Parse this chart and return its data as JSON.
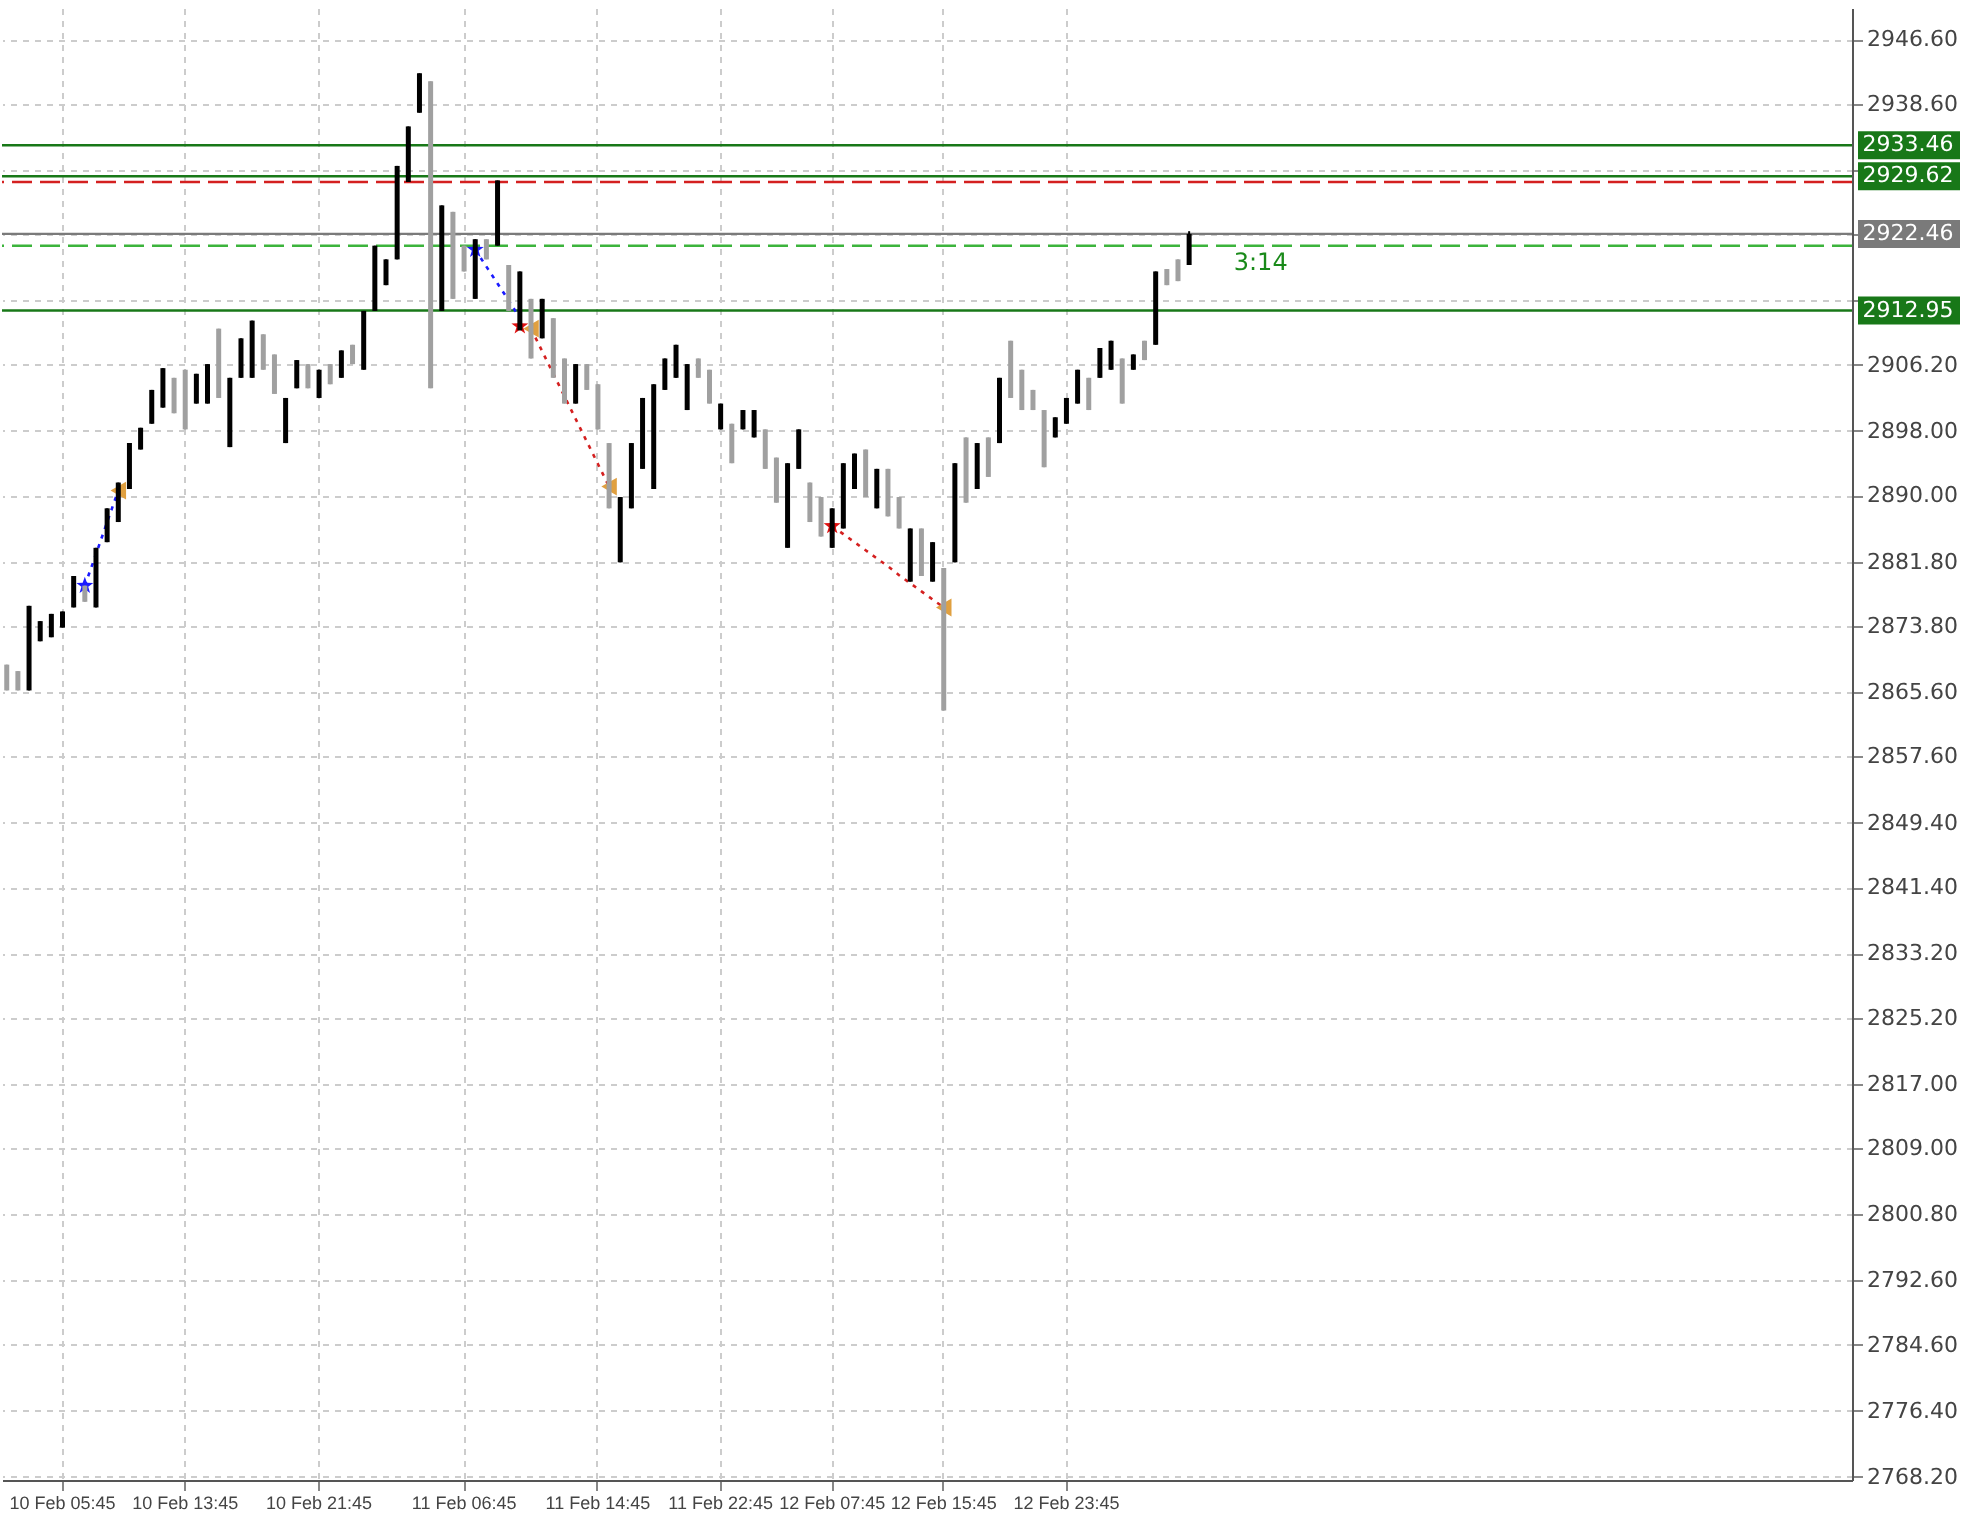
{
  "chart_data": {
    "type": "candlestick",
    "categories": [
      null,
      null,
      null,
      null,
      null,
      "10 Feb 05:45",
      null,
      null,
      null,
      null,
      null,
      null,
      null,
      null,
      null,
      null,
      "10 Feb 13:45",
      null,
      null,
      null,
      null,
      null,
      null,
      null,
      null,
      null,
      null,
      null,
      "10 Feb 21:45",
      null,
      null,
      null,
      null,
      null,
      null,
      null,
      null,
      null,
      null,
      null,
      null,
      "11 Feb 06:45",
      null,
      null,
      null,
      null,
      null,
      null,
      null,
      null,
      null,
      null,
      null,
      "11 Feb 14:45",
      null,
      null,
      null,
      null,
      null,
      null,
      null,
      null,
      null,
      null,
      "11 Feb 22:45",
      null,
      null,
      null,
      null,
      null,
      null,
      null,
      null,
      null,
      "12 Feb 07:45",
      null,
      null,
      null,
      null,
      null,
      null,
      null,
      null,
      null,
      "12 Feb 15:45",
      null,
      null,
      null,
      null,
      null,
      null,
      null,
      null,
      null,
      null,
      "12 Feb 23:45",
      null,
      null,
      null,
      null,
      null,
      null,
      null,
      null,
      null,
      null,
      null,
      null,
      null,
      null,
      null,
      null,
      null,
      null,
      null,
      null,
      null,
      null,
      null,
      null,
      null,
      null,
      null,
      null,
      null,
      null,
      null,
      null,
      null,
      null,
      null,
      null,
      null,
      null,
      null,
      null,
      null,
      null,
      null,
      null,
      null,
      null,
      null,
      null,
      null,
      null,
      null,
      null,
      null,
      null,
      null,
      null,
      null,
      null,
      null,
      null,
      null,
      null,
      null,
      null,
      null,
      null,
      null,
      null,
      null,
      null
    ],
    "ohlc": [
      [
        2869.0,
        2869.0,
        2865.8,
        2865.8
      ],
      [
        2868.2,
        2868.2,
        2865.8,
        2865.8
      ],
      [
        2865.8,
        2876.3,
        2865.8,
        2876.3
      ],
      [
        2871.9,
        2874.4,
        2871.9,
        2874.4
      ],
      [
        2872.4,
        2875.3,
        2872.4,
        2875.3
      ],
      [
        2873.6,
        2875.6,
        2873.6,
        2875.6
      ],
      [
        2876.1,
        2880.0,
        2876.1,
        2880.0
      ],
      [
        2878.8,
        2878.8,
        2876.8,
        2876.8
      ],
      [
        2876.1,
        2883.5,
        2876.1,
        2883.5
      ],
      [
        2884.2,
        2888.4,
        2884.2,
        2888.4
      ],
      [
        2886.7,
        2891.6,
        2886.7,
        2891.6
      ],
      [
        2890.8,
        2896.5,
        2890.8,
        2896.5
      ],
      [
        2895.7,
        2898.4,
        2895.7,
        2898.4
      ],
      [
        2898.9,
        2903.1,
        2898.9,
        2903.1
      ],
      [
        2900.9,
        2905.8,
        2900.9,
        2905.8
      ],
      [
        2904.6,
        2904.6,
        2900.2,
        2900.2
      ],
      [
        2905.6,
        2905.6,
        2898.2,
        2898.2
      ],
      [
        2901.4,
        2905.1,
        2901.4,
        2905.1
      ],
      [
        2901.4,
        2906.3,
        2901.4,
        2906.3
      ],
      [
        2910.7,
        2910.7,
        2902.1,
        2902.1
      ],
      [
        2896.0,
        2904.6,
        2896.0,
        2904.6
      ],
      [
        2904.6,
        2909.5,
        2904.6,
        2909.5
      ],
      [
        2904.6,
        2911.7,
        2904.6,
        2911.7
      ],
      [
        2910.0,
        2910.0,
        2905.6,
        2905.6
      ],
      [
        2907.5,
        2907.5,
        2902.6,
        2902.6
      ],
      [
        2896.5,
        2902.1,
        2896.5,
        2902.1
      ],
      [
        2903.3,
        2906.8,
        2903.3,
        2906.8
      ],
      [
        2906.3,
        2906.3,
        2903.3,
        2903.3
      ],
      [
        2902.1,
        2905.6,
        2902.1,
        2905.6
      ],
      [
        2906.3,
        2906.3,
        2903.8,
        2903.8
      ],
      [
        2904.6,
        2908.0,
        2904.6,
        2908.0
      ],
      [
        2908.7,
        2908.7,
        2906.3,
        2906.3
      ],
      [
        2905.6,
        2912.9,
        2905.6,
        2912.9
      ],
      [
        2912.9,
        2921.0,
        2912.9,
        2921.0
      ],
      [
        2916.1,
        2919.3,
        2916.1,
        2919.3
      ],
      [
        2919.3,
        2930.9,
        2919.3,
        2930.9
      ],
      [
        2928.9,
        2935.8,
        2928.9,
        2935.8
      ],
      [
        2937.5,
        2942.4,
        2937.5,
        2942.4
      ],
      [
        2941.4,
        2941.4,
        2903.3,
        2903.3
      ],
      [
        2912.9,
        2926.0,
        2912.9,
        2926.0
      ],
      [
        2925.2,
        2925.2,
        2914.4,
        2914.4
      ],
      [
        2921.0,
        2921.0,
        2917.8,
        2917.8
      ],
      [
        2914.4,
        2921.8,
        2914.4,
        2921.8
      ],
      [
        2921.8,
        2921.8,
        2919.3,
        2919.3
      ],
      [
        2921.0,
        2929.1,
        2921.0,
        2929.1
      ],
      [
        2918.6,
        2918.6,
        2912.9,
        2912.9
      ],
      [
        2910.5,
        2917.8,
        2910.5,
        2917.8
      ],
      [
        2914.4,
        2914.4,
        2907.0,
        2907.0
      ],
      [
        2909.5,
        2914.4,
        2909.5,
        2914.4
      ],
      [
        2912.0,
        2912.0,
        2904.6,
        2904.6
      ],
      [
        2907.0,
        2907.0,
        2901.4,
        2901.4
      ],
      [
        2901.4,
        2906.3,
        2901.4,
        2906.3
      ],
      [
        2906.3,
        2906.3,
        2903.1,
        2903.1
      ],
      [
        2903.8,
        2903.8,
        2898.2,
        2898.2
      ],
      [
        2896.5,
        2896.5,
        2888.4,
        2888.4
      ],
      [
        2881.7,
        2889.8,
        2881.7,
        2889.8
      ],
      [
        2888.4,
        2896.5,
        2888.4,
        2896.5
      ],
      [
        2893.3,
        2902.1,
        2893.3,
        2902.1
      ],
      [
        2890.8,
        2903.8,
        2890.8,
        2903.8
      ],
      [
        2903.1,
        2907.0,
        2903.1,
        2907.0
      ],
      [
        2904.6,
        2908.7,
        2904.6,
        2908.7
      ],
      [
        2900.6,
        2906.3,
        2900.6,
        2906.3
      ],
      [
        2907.0,
        2907.0,
        2904.6,
        2904.6
      ],
      [
        2905.6,
        2905.6,
        2901.4,
        2901.4
      ],
      [
        2898.2,
        2901.4,
        2898.2,
        2901.4
      ],
      [
        2898.9,
        2898.9,
        2894.0,
        2894.0
      ],
      [
        2898.2,
        2900.6,
        2898.2,
        2900.6
      ],
      [
        2897.2,
        2900.6,
        2897.2,
        2900.6
      ],
      [
        2898.2,
        2898.2,
        2893.3,
        2893.3
      ],
      [
        2894.7,
        2894.7,
        2889.1,
        2889.1
      ],
      [
        2883.5,
        2894.0,
        2883.5,
        2894.0
      ],
      [
        2893.3,
        2898.2,
        2893.3,
        2898.2
      ],
      [
        2891.6,
        2891.6,
        2886.7,
        2886.7
      ],
      [
        2889.8,
        2889.8,
        2884.9,
        2884.9
      ],
      [
        2883.5,
        2888.4,
        2883.5,
        2888.4
      ],
      [
        2885.9,
        2894.0,
        2885.9,
        2894.0
      ],
      [
        2890.8,
        2895.2,
        2890.8,
        2895.2
      ],
      [
        2895.7,
        2895.7,
        2889.8,
        2889.8
      ],
      [
        2888.4,
        2893.3,
        2888.4,
        2893.3
      ],
      [
        2893.3,
        2893.3,
        2887.4,
        2887.4
      ],
      [
        2889.8,
        2889.8,
        2885.9,
        2885.9
      ],
      [
        2879.3,
        2885.9,
        2879.3,
        2885.9
      ],
      [
        2885.9,
        2885.9,
        2880.0,
        2880.0
      ],
      [
        2879.3,
        2884.2,
        2879.3,
        2884.2
      ],
      [
        2881.0,
        2881.0,
        2863.3,
        2863.3
      ],
      [
        2881.7,
        2894.0,
        2881.7,
        2894.0
      ],
      [
        2897.2,
        2897.2,
        2889.1,
        2889.1
      ],
      [
        2890.8,
        2896.5,
        2890.8,
        2896.5
      ],
      [
        2897.2,
        2897.2,
        2892.3,
        2892.3
      ],
      [
        2896.5,
        2904.6,
        2896.5,
        2904.6
      ],
      [
        2909.2,
        2909.2,
        2902.1,
        2902.1
      ],
      [
        2905.6,
        2905.6,
        2900.6,
        2900.6
      ],
      [
        2903.1,
        2903.1,
        2900.6,
        2900.6
      ],
      [
        2900.6,
        2900.6,
        2893.5,
        2893.5
      ],
      [
        2897.2,
        2899.7,
        2897.2,
        2899.7
      ],
      [
        2898.9,
        2902.1,
        2898.9,
        2902.1
      ],
      [
        2901.4,
        2905.6,
        2901.4,
        2905.6
      ],
      [
        2904.6,
        2904.6,
        2900.6,
        2900.6
      ],
      [
        2904.6,
        2908.3,
        2904.6,
        2908.3
      ],
      [
        2905.6,
        2909.2,
        2905.6,
        2909.2
      ],
      [
        2907.0,
        2907.0,
        2901.4,
        2901.4
      ],
      [
        2905.6,
        2907.5,
        2905.6,
        2907.5
      ],
      [
        2909.2,
        2909.2,
        2906.8,
        2906.8
      ],
      [
        2908.7,
        2917.8,
        2908.7,
        2917.8
      ],
      [
        2918.1,
        2918.1,
        2916.1,
        2916.1
      ],
      [
        2919.3,
        2919.3,
        2916.6,
        2916.6
      ],
      [
        2918.6,
        2922.8,
        2918.6,
        2922.46
      ],
      null,
      null,
      null,
      null,
      null,
      null,
      null,
      null,
      null,
      null,
      null,
      null,
      null,
      null,
      null,
      null,
      null,
      null,
      null,
      null,
      null,
      null,
      null,
      null,
      null,
      null,
      null,
      null,
      null,
      null,
      null,
      null,
      null,
      null,
      null,
      null,
      null,
      null,
      null,
      null,
      null,
      null,
      null,
      null,
      null,
      null,
      null,
      null,
      null,
      null,
      null,
      null,
      null,
      null,
      null,
      null,
      null,
      null,
      null
    ],
    "colors": [
      "#a0a0a0",
      "#a0a0a0",
      "#000000",
      "#000000",
      "#000000",
      "#000000",
      "#000000",
      "#a0a0a0",
      "#000000",
      "#000000",
      "#000000",
      "#000000",
      "#000000",
      "#000000",
      "#000000",
      "#a0a0a0",
      "#a0a0a0",
      "#000000",
      "#000000",
      "#a0a0a0",
      "#000000",
      "#000000",
      "#000000",
      "#a0a0a0",
      "#a0a0a0",
      "#000000",
      "#000000",
      "#a0a0a0",
      "#000000",
      "#a0a0a0",
      "#000000",
      "#a0a0a0",
      "#000000",
      "#000000",
      "#000000",
      "#000000",
      "#000000",
      "#000000",
      "#a0a0a0",
      "#000000",
      "#a0a0a0",
      "#a0a0a0",
      "#000000",
      "#a0a0a0",
      "#000000",
      "#a0a0a0",
      "#000000",
      "#a0a0a0",
      "#000000",
      "#a0a0a0",
      "#a0a0a0",
      "#000000",
      "#a0a0a0",
      "#a0a0a0",
      "#a0a0a0",
      "#000000",
      "#000000",
      "#000000",
      "#000000",
      "#000000",
      "#000000",
      "#000000",
      "#a0a0a0",
      "#a0a0a0",
      "#000000",
      "#a0a0a0",
      "#000000",
      "#000000",
      "#a0a0a0",
      "#a0a0a0",
      "#000000",
      "#000000",
      "#a0a0a0",
      "#a0a0a0",
      "#000000",
      "#000000",
      "#000000",
      "#a0a0a0",
      "#000000",
      "#a0a0a0",
      "#a0a0a0",
      "#000000",
      "#a0a0a0",
      "#000000",
      "#a0a0a0",
      "#000000",
      "#a0a0a0",
      "#000000",
      "#a0a0a0",
      "#000000",
      "#a0a0a0",
      "#a0a0a0",
      "#a0a0a0",
      "#a0a0a0",
      "#000000",
      "#000000",
      "#000000",
      "#a0a0a0",
      "#000000",
      "#000000",
      "#a0a0a0",
      "#000000",
      "#a0a0a0",
      "#000000",
      "#a0a0a0",
      "#a0a0a0",
      "#000000",
      null,
      null,
      null,
      null,
      null,
      null,
      null,
      null,
      null,
      null,
      null,
      null,
      null,
      null,
      null,
      null,
      null,
      null,
      null,
      null,
      null,
      null,
      null,
      null,
      null,
      null,
      null,
      null,
      null,
      null,
      null,
      null,
      null,
      null,
      null,
      null,
      null,
      null,
      null,
      null,
      null,
      null,
      null,
      null,
      null,
      null,
      null,
      null,
      null,
      null,
      null,
      null,
      null,
      null,
      null,
      null,
      null,
      null,
      null
    ],
    "series": [
      {
        "type": "line",
        "color": "#1a1aff",
        "line_style": "dotted",
        "values": [
          null,
          null,
          null,
          null,
          null,
          null,
          null,
          2878.8,
          2882.7,
          2886.7,
          2890.6,
          null,
          null,
          null,
          null,
          null,
          null,
          null,
          null,
          null,
          null,
          null,
          null,
          null,
          null,
          null,
          null,
          null,
          null,
          null,
          null,
          null,
          null,
          null,
          null,
          null,
          null,
          null,
          null,
          null,
          null,
          null,
          2920.5,
          2918.4,
          2916.3,
          2914.2,
          2912.0,
          null,
          null,
          null,
          null,
          null,
          null,
          null,
          null,
          null,
          null,
          null,
          null,
          null,
          null,
          null,
          null,
          null,
          null,
          null,
          null,
          null,
          null,
          null,
          null,
          null,
          null,
          null,
          null,
          null,
          null,
          null,
          null,
          null,
          null,
          null,
          null,
          null,
          null,
          null,
          null,
          null,
          null,
          null,
          null,
          null,
          null,
          null,
          null,
          null,
          null,
          null,
          null,
          null,
          null,
          null,
          null,
          null,
          null,
          null,
          null,
          null,
          null,
          null,
          null,
          null,
          null,
          null,
          null,
          null,
          null,
          null,
          null,
          null,
          null,
          null,
          null,
          null,
          null,
          null,
          null,
          null,
          null,
          null,
          null,
          null,
          null,
          null,
          null,
          null,
          null,
          null,
          null,
          null,
          null,
          null,
          null,
          null,
          null,
          null,
          null,
          null,
          null,
          null,
          null,
          null,
          null,
          null,
          null,
          null,
          null,
          null,
          null,
          null,
          null,
          null,
          null,
          null,
          null,
          null
        ]
      },
      {
        "type": "line",
        "color": "#d42020",
        "line_style": "dotted",
        "values": [
          null,
          null,
          null,
          null,
          null,
          null,
          null,
          null,
          null,
          null,
          null,
          null,
          null,
          null,
          null,
          null,
          null,
          null,
          null,
          null,
          null,
          null,
          null,
          null,
          null,
          null,
          null,
          null,
          null,
          null,
          null,
          null,
          null,
          null,
          null,
          null,
          null,
          null,
          null,
          null,
          null,
          null,
          null,
          null,
          null,
          null,
          null,
          2910.7,
          2907.9,
          2905.1,
          2902.3,
          2899.5,
          2896.7,
          2893.9,
          2891.1,
          null,
          null,
          null,
          null,
          null,
          null,
          null,
          null,
          null,
          null,
          null,
          null,
          null,
          null,
          null,
          null,
          null,
          null,
          null,
          2886.2,
          2885.2,
          2884.2,
          2883.2,
          2882.2,
          2881.2,
          2880.1,
          2879.1,
          2878.1,
          2877.1,
          2876.1,
          null,
          null,
          null,
          null,
          null,
          null,
          null,
          null,
          null,
          null,
          null,
          null,
          null,
          null,
          null,
          null,
          null,
          null,
          null,
          null,
          null,
          null,
          null,
          null,
          null,
          null,
          null,
          null,
          null,
          null,
          null,
          null,
          null,
          null,
          null,
          null,
          null,
          null,
          null,
          null,
          null,
          null,
          null,
          null,
          null,
          null,
          null,
          null,
          null,
          null,
          null,
          null,
          null,
          null,
          null,
          null,
          null,
          null,
          null,
          null,
          null,
          null,
          null,
          null,
          null,
          null,
          null,
          null,
          null,
          null,
          null,
          null,
          null,
          null,
          null,
          null,
          null,
          null,
          null,
          null,
          null
        ]
      },
      {
        "type": "scatter",
        "color": "#1a1aff",
        "marker": "star",
        "values": [
          null,
          null,
          null,
          null,
          null,
          null,
          null,
          2878.8,
          null,
          null,
          null,
          null,
          null,
          null,
          null,
          null,
          null,
          null,
          null,
          null,
          null,
          null,
          null,
          null,
          null,
          null,
          null,
          null,
          null,
          null,
          null,
          null,
          null,
          null,
          null,
          null,
          null,
          null,
          null,
          null,
          null,
          null,
          2920.5,
          null,
          null,
          null,
          null,
          null,
          null,
          null,
          null,
          null,
          null,
          null,
          null,
          null,
          null,
          null,
          null,
          null,
          null,
          null,
          null,
          null,
          null,
          null,
          null,
          null,
          null,
          null,
          null,
          null,
          null,
          null,
          null,
          null,
          null,
          null,
          null,
          null,
          null,
          null,
          null,
          null,
          null,
          null,
          null,
          null,
          null,
          null,
          null,
          null,
          null,
          null,
          null,
          null,
          null,
          null,
          null,
          null,
          null,
          null,
          null,
          null,
          null,
          null,
          null,
          null,
          null,
          null,
          null,
          null,
          null,
          null,
          null,
          null,
          null,
          null,
          null,
          null,
          null,
          null,
          null,
          null,
          null,
          null,
          null,
          null,
          null,
          null,
          null,
          null,
          null,
          null,
          null,
          null,
          null,
          null,
          null,
          null,
          null,
          null,
          null,
          null,
          null,
          null,
          null,
          null,
          null,
          null,
          null,
          null,
          null,
          null,
          null,
          null,
          null,
          null,
          null,
          null,
          null,
          null,
          null,
          null,
          null,
          null
        ]
      },
      {
        "type": "scatter",
        "color": "#e01010",
        "marker": "star",
        "values": [
          null,
          null,
          null,
          null,
          null,
          null,
          null,
          null,
          null,
          null,
          null,
          null,
          null,
          null,
          null,
          null,
          null,
          null,
          null,
          null,
          null,
          null,
          null,
          null,
          null,
          null,
          null,
          null,
          null,
          null,
          null,
          null,
          null,
          null,
          null,
          null,
          null,
          null,
          null,
          null,
          null,
          null,
          null,
          null,
          null,
          null,
          2911.0,
          null,
          null,
          null,
          null,
          null,
          null,
          null,
          null,
          null,
          null,
          null,
          null,
          null,
          null,
          null,
          null,
          null,
          null,
          null,
          null,
          null,
          null,
          null,
          null,
          null,
          null,
          null,
          2886.2,
          null,
          null,
          null,
          null,
          null,
          null,
          null,
          null,
          null,
          null,
          null,
          null,
          null,
          null,
          null,
          null,
          null,
          null,
          null,
          null,
          null,
          null,
          null,
          null,
          null,
          null,
          null,
          null,
          null,
          null,
          null,
          null,
          null,
          null,
          null,
          null,
          null,
          null,
          null,
          null,
          null,
          null,
          null,
          null,
          null,
          null,
          null,
          null,
          null,
          null,
          null,
          null,
          null,
          null,
          null,
          null,
          null,
          null,
          null,
          null,
          null,
          null,
          null,
          null,
          null,
          null,
          null,
          null,
          null,
          null,
          null,
          null,
          null,
          null,
          null,
          null,
          null,
          null,
          null,
          null,
          null,
          null,
          null,
          null,
          null,
          null,
          null,
          null,
          null,
          null,
          null
        ]
      },
      {
        "type": "scatter",
        "color": "#e0a040",
        "marker": "triangle",
        "values": [
          null,
          null,
          null,
          null,
          null,
          null,
          null,
          null,
          null,
          null,
          2890.6,
          null,
          null,
          null,
          null,
          null,
          null,
          null,
          null,
          null,
          null,
          null,
          null,
          null,
          null,
          null,
          null,
          null,
          null,
          null,
          null,
          null,
          null,
          null,
          null,
          null,
          null,
          null,
          null,
          null,
          null,
          null,
          null,
          null,
          null,
          null,
          null,
          2910.7,
          null,
          null,
          null,
          null,
          null,
          null,
          2891.1,
          null,
          null,
          null,
          null,
          null,
          null,
          null,
          null,
          null,
          null,
          null,
          null,
          null,
          null,
          null,
          null,
          null,
          null,
          null,
          null,
          null,
          null,
          null,
          null,
          null,
          null,
          null,
          null,
          null,
          2876.1,
          null,
          null,
          null,
          null,
          null,
          null,
          null,
          null,
          null,
          null,
          null,
          null,
          null,
          null,
          null,
          null,
          null,
          null,
          null,
          null,
          null,
          null,
          null,
          null,
          null,
          null,
          null,
          null,
          null,
          null,
          null,
          null,
          null,
          null,
          null,
          null,
          null,
          null,
          null,
          null,
          null,
          null,
          null,
          null,
          null,
          null,
          null,
          null,
          null,
          null,
          null,
          null,
          null,
          null,
          null,
          null,
          null,
          null,
          null,
          null,
          null,
          null,
          null,
          null,
          null,
          null,
          null,
          null,
          null,
          null,
          null,
          null,
          null,
          null,
          null,
          null,
          null,
          null,
          null,
          null,
          null
        ]
      }
    ],
    "ylim": [
      2767.8,
      2950.5
    ],
    "yticks": [
      {
        "value": 2946.6,
        "label": "2946.60"
      },
      {
        "value": 2938.6,
        "label": "2938.60"
      },
      {
        "value": 2930.4,
        "label": null
      },
      {
        "value": 2922.4,
        "label": null
      },
      {
        "value": 2914.2,
        "label": null
      },
      {
        "value": 2906.2,
        "label": "2906.20"
      },
      {
        "value": 2898.0,
        "label": "2898.00"
      },
      {
        "value": 2890.0,
        "label": "2890.00"
      },
      {
        "value": 2881.8,
        "label": "2881.80"
      },
      {
        "value": 2873.8,
        "label": "2873.80"
      },
      {
        "value": 2865.6,
        "label": "2865.60"
      },
      {
        "value": 2857.6,
        "label": "2857.60"
      },
      {
        "value": 2849.4,
        "label": "2849.40"
      },
      {
        "value": 2841.4,
        "label": "2841.40"
      },
      {
        "value": 2833.2,
        "label": "2833.20"
      },
      {
        "value": 2825.2,
        "label": "2825.20"
      },
      {
        "value": 2817.0,
        "label": "2817.00"
      },
      {
        "value": 2809.0,
        "label": "2809.00"
      },
      {
        "value": 2800.8,
        "label": "2800.80"
      },
      {
        "value": 2792.6,
        "label": "2792.60"
      },
      {
        "value": 2784.6,
        "label": "2784.60"
      },
      {
        "value": 2776.4,
        "label": "2776.40"
      },
      {
        "value": 2768.2,
        "label": "2768.20"
      }
    ],
    "grid": true,
    "ref_lines": [
      {
        "axis": "y",
        "value": 2933.46,
        "label": "2933.46",
        "color": "#187818",
        "line_style": "solid"
      },
      {
        "axis": "y",
        "value": 2929.62,
        "label": "2929.62",
        "color": "#187818",
        "line_style": "solid"
      },
      {
        "axis": "y",
        "value": 2928.9,
        "color": "#d42020",
        "line_style": "dashed"
      },
      {
        "axis": "y",
        "value": 2922.46,
        "label": "2922.46",
        "color": "#7a7a7a",
        "line_style": "solid"
      },
      {
        "axis": "y",
        "value": 2921.0,
        "color": "#3cb43c",
        "line_style": "dashed"
      },
      {
        "axis": "y",
        "value": 2912.95,
        "label": "2912.95",
        "color": "#187818",
        "line_style": "solid"
      }
    ],
    "annotations": [
      {
        "text": "3:14",
        "y": 2921.0
      }
    ]
  }
}
